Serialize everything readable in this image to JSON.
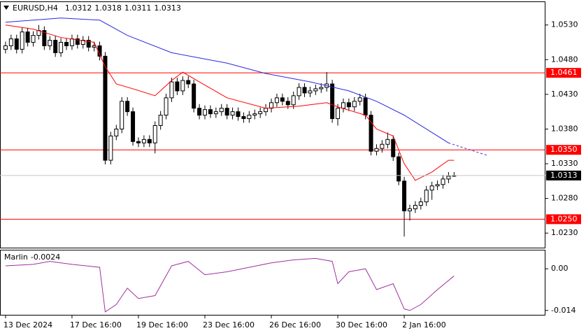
{
  "chart_data": {
    "type": "candlestick",
    "symbol": "EURUSD,H4",
    "categories": [
      "13 Dec 2024",
      null,
      null,
      null,
      null,
      null,
      null,
      null,
      null,
      null,
      null,
      null,
      "17 Dec 16:00",
      null,
      null,
      null,
      null,
      null,
      null,
      null,
      null,
      null,
      null,
      null,
      "19 Dec 16:00",
      null,
      null,
      null,
      null,
      null,
      null,
      null,
      null,
      null,
      null,
      null,
      "23 Dec 16:00",
      null,
      null,
      null,
      null,
      null,
      null,
      null,
      null,
      null,
      null,
      null,
      "26 Dec 16:00",
      null,
      null,
      null,
      null,
      null,
      null,
      null,
      null,
      null,
      null,
      null,
      "30 Dec 16:00",
      null,
      null,
      null,
      null,
      null,
      null,
      null,
      null,
      null,
      null,
      null,
      "2 Jan 16:00",
      null,
      null,
      null,
      null,
      null,
      null,
      null,
      null,
      null
    ],
    "open": [
      1.0495,
      1.05,
      1.051,
      1.0495,
      1.052,
      1.0505,
      1.0515,
      1.0522,
      1.05,
      1.0508,
      1.049,
      1.0505,
      1.05,
      1.051,
      1.0502,
      1.0508,
      1.0498,
      1.05,
      1.0485,
      1.0335,
      1.037,
      1.038,
      1.042,
      1.0405,
      1.0362,
      1.036,
      1.0365,
      1.036,
      1.0385,
      1.04,
      1.0425,
      1.0448,
      1.0435,
      1.045,
      1.0445,
      1.041,
      1.04,
      1.0408,
      1.0402,
      1.0405,
      1.041,
      1.04,
      1.0405,
      1.0398,
      1.0395,
      1.04,
      1.0402,
      1.0405,
      1.041,
      1.0418,
      1.0425,
      1.042,
      1.0415,
      1.0428,
      1.044,
      1.0432,
      1.0435,
      1.0438,
      1.044,
      1.0445,
      1.0395,
      1.041,
      1.0418,
      1.0412,
      1.042,
      1.0425,
      1.04,
      1.0348,
      1.0352,
      1.0358,
      1.0365,
      1.034,
      1.0305,
      1.0262,
      1.0265,
      1.027,
      1.0275,
      1.0292,
      1.0298,
      1.03,
      1.0308,
      1.0312
    ],
    "high": [
      1.0506,
      1.0516,
      1.0516,
      1.0526,
      1.0526,
      1.0521,
      1.053,
      1.0528,
      1.0514,
      1.0514,
      1.0511,
      1.0511,
      1.0516,
      1.0516,
      1.0514,
      1.0514,
      1.0506,
      1.0506,
      1.0491,
      1.0376,
      1.0386,
      1.0426,
      1.0426,
      1.0411,
      1.0368,
      1.0371,
      1.0371,
      1.0391,
      1.0406,
      1.0431,
      1.0454,
      1.0454,
      1.0456,
      1.0456,
      1.0451,
      1.0416,
      1.0414,
      1.0414,
      1.0411,
      1.0416,
      1.0416,
      1.0411,
      1.0411,
      1.0404,
      1.0406,
      1.0408,
      1.0411,
      1.0416,
      1.0424,
      1.0431,
      1.0431,
      1.0426,
      1.0434,
      1.0446,
      1.0446,
      1.0441,
      1.0444,
      1.0446,
      1.0462,
      1.0451,
      1.0416,
      1.0424,
      1.0424,
      1.0426,
      1.0431,
      1.0431,
      1.0406,
      1.0358,
      1.0364,
      1.0375,
      1.0371,
      1.0346,
      1.0311,
      1.0271,
      1.0276,
      1.0281,
      1.0298,
      1.0304,
      1.0306,
      1.0314,
      1.0318,
      1.0318
    ],
    "low": [
      1.0489,
      1.0494,
      1.0489,
      1.0489,
      1.0499,
      1.0499,
      1.0509,
      1.0494,
      1.0494,
      1.0484,
      1.0484,
      1.0494,
      1.0494,
      1.0496,
      1.0496,
      1.0492,
      1.0492,
      1.0479,
      1.0329,
      1.0329,
      1.0364,
      1.0374,
      1.0399,
      1.0356,
      1.0354,
      1.0354,
      1.0354,
      1.0345,
      1.0379,
      1.0394,
      1.0419,
      1.0429,
      1.0429,
      1.0439,
      1.0404,
      1.0394,
      1.0394,
      1.0396,
      1.0396,
      1.0399,
      1.0394,
      1.0394,
      1.0392,
      1.0389,
      1.0389,
      1.0394,
      1.0396,
      1.0399,
      1.0404,
      1.0412,
      1.0414,
      1.0409,
      1.0409,
      1.0422,
      1.0426,
      1.0426,
      1.0429,
      1.0432,
      1.0434,
      1.0389,
      1.0385,
      1.0404,
      1.0406,
      1.0406,
      1.0414,
      1.0394,
      1.0342,
      1.0342,
      1.0346,
      1.0352,
      1.0334,
      1.0299,
      1.0225,
      1.0248,
      1.0259,
      1.0264,
      1.0269,
      1.0278,
      1.0292,
      1.0294,
      1.0302,
      1.0311
    ],
    "close": [
      1.05,
      1.051,
      1.0495,
      1.052,
      1.0505,
      1.0515,
      1.0522,
      1.05,
      1.0508,
      1.049,
      1.0505,
      1.05,
      1.051,
      1.0502,
      1.0508,
      1.0498,
      1.05,
      1.0485,
      1.0335,
      1.037,
      1.038,
      1.042,
      1.0405,
      1.0362,
      1.036,
      1.0365,
      1.036,
      1.0385,
      1.04,
      1.0425,
      1.0448,
      1.0435,
      1.045,
      1.0445,
      1.041,
      1.04,
      1.0408,
      1.0402,
      1.0405,
      1.041,
      1.04,
      1.0405,
      1.0398,
      1.0395,
      1.04,
      1.0402,
      1.0405,
      1.041,
      1.0418,
      1.0425,
      1.042,
      1.0415,
      1.0428,
      1.044,
      1.0432,
      1.0435,
      1.0438,
      1.044,
      1.0445,
      1.0395,
      1.041,
      1.0418,
      1.0412,
      1.042,
      1.0425,
      1.04,
      1.0348,
      1.0352,
      1.0358,
      1.0365,
      1.034,
      1.0305,
      1.0262,
      1.0265,
      1.027,
      1.0275,
      1.0292,
      1.0298,
      1.03,
      1.0308,
      1.0312,
      1.0313
    ],
    "candle_color": "#000000",
    "series": [
      {
        "color": "#ff0000",
        "x": [
          0,
          5,
          10,
          16,
          18,
          20,
          23,
          27,
          30,
          32,
          35,
          40,
          47,
          53,
          58,
          60,
          65,
          67,
          70,
          72,
          74,
          77,
          80,
          81
        ],
        "values": [
          1.053,
          1.0524,
          1.0512,
          1.0505,
          1.047,
          1.0445,
          1.0438,
          1.0428,
          1.045,
          1.0462,
          1.0448,
          1.0425,
          1.041,
          1.0413,
          1.0418,
          1.0412,
          1.04,
          1.038,
          1.037,
          1.033,
          1.0306,
          1.0318,
          1.0335,
          1.0335
        ]
      },
      {
        "color": "#2a2ae0",
        "x": [
          0,
          10,
          17,
          22,
          30,
          40,
          47,
          55,
          62,
          67,
          72,
          76,
          80,
          87
        ],
        "values": [
          1.0534,
          1.054,
          1.0537,
          1.0515,
          1.049,
          1.0475,
          1.046,
          1.0448,
          1.0435,
          1.042,
          1.04,
          1.038,
          1.036,
          1.0342
        ]
      }
    ],
    "levels": [
      {
        "value": 1.0461,
        "label": "1.0461"
      },
      {
        "value": 1.035,
        "label": "1.0350"
      },
      {
        "value": 1.025,
        "label": "1.0250"
      }
    ],
    "level_color": "#ff0000",
    "xlim": [
      -1,
      97.5
    ],
    "ylim": [
      1.0208,
      1.0564
    ],
    "yticks": [
      {
        "value": 1.053,
        "label": "1.0530"
      },
      {
        "value": 1.048,
        "label": "1.0480"
      },
      {
        "value": 1.043,
        "label": "1.0430"
      },
      {
        "value": 1.038,
        "label": "1.0380"
      },
      {
        "value": 1.033,
        "label": "1.0330"
      },
      {
        "value": 1.028,
        "label": "1.0280"
      },
      {
        "value": 1.023,
        "label": "1.0230"
      }
    ],
    "indicator": {
      "name": "Marlin",
      "color": "#a0309f",
      "x": [
        0,
        5,
        8,
        12,
        17,
        18,
        20,
        22,
        24,
        27,
        30,
        33,
        36,
        40,
        44,
        48,
        52,
        56,
        59,
        60,
        62,
        65,
        67,
        70,
        72,
        73,
        75,
        78,
        81
      ],
      "values": [
        0.001,
        0.0015,
        0.0025,
        0.0015,
        0.0005,
        -0.0145,
        -0.012,
        -0.0065,
        -0.01,
        -0.009,
        0.001,
        0.0025,
        -0.002,
        -0.001,
        0.0005,
        0.002,
        0.003,
        0.0035,
        0.0025,
        -0.005,
        -0.001,
        0.0,
        -0.007,
        -0.005,
        -0.0135,
        -0.014,
        -0.012,
        -0.007,
        -0.0024
      ],
      "ylim": [
        -0.0157,
        0.0064
      ],
      "yticks": [
        {
          "value": 0,
          "label": "0.00"
        },
        -0.014
      ]
    }
  }
}
